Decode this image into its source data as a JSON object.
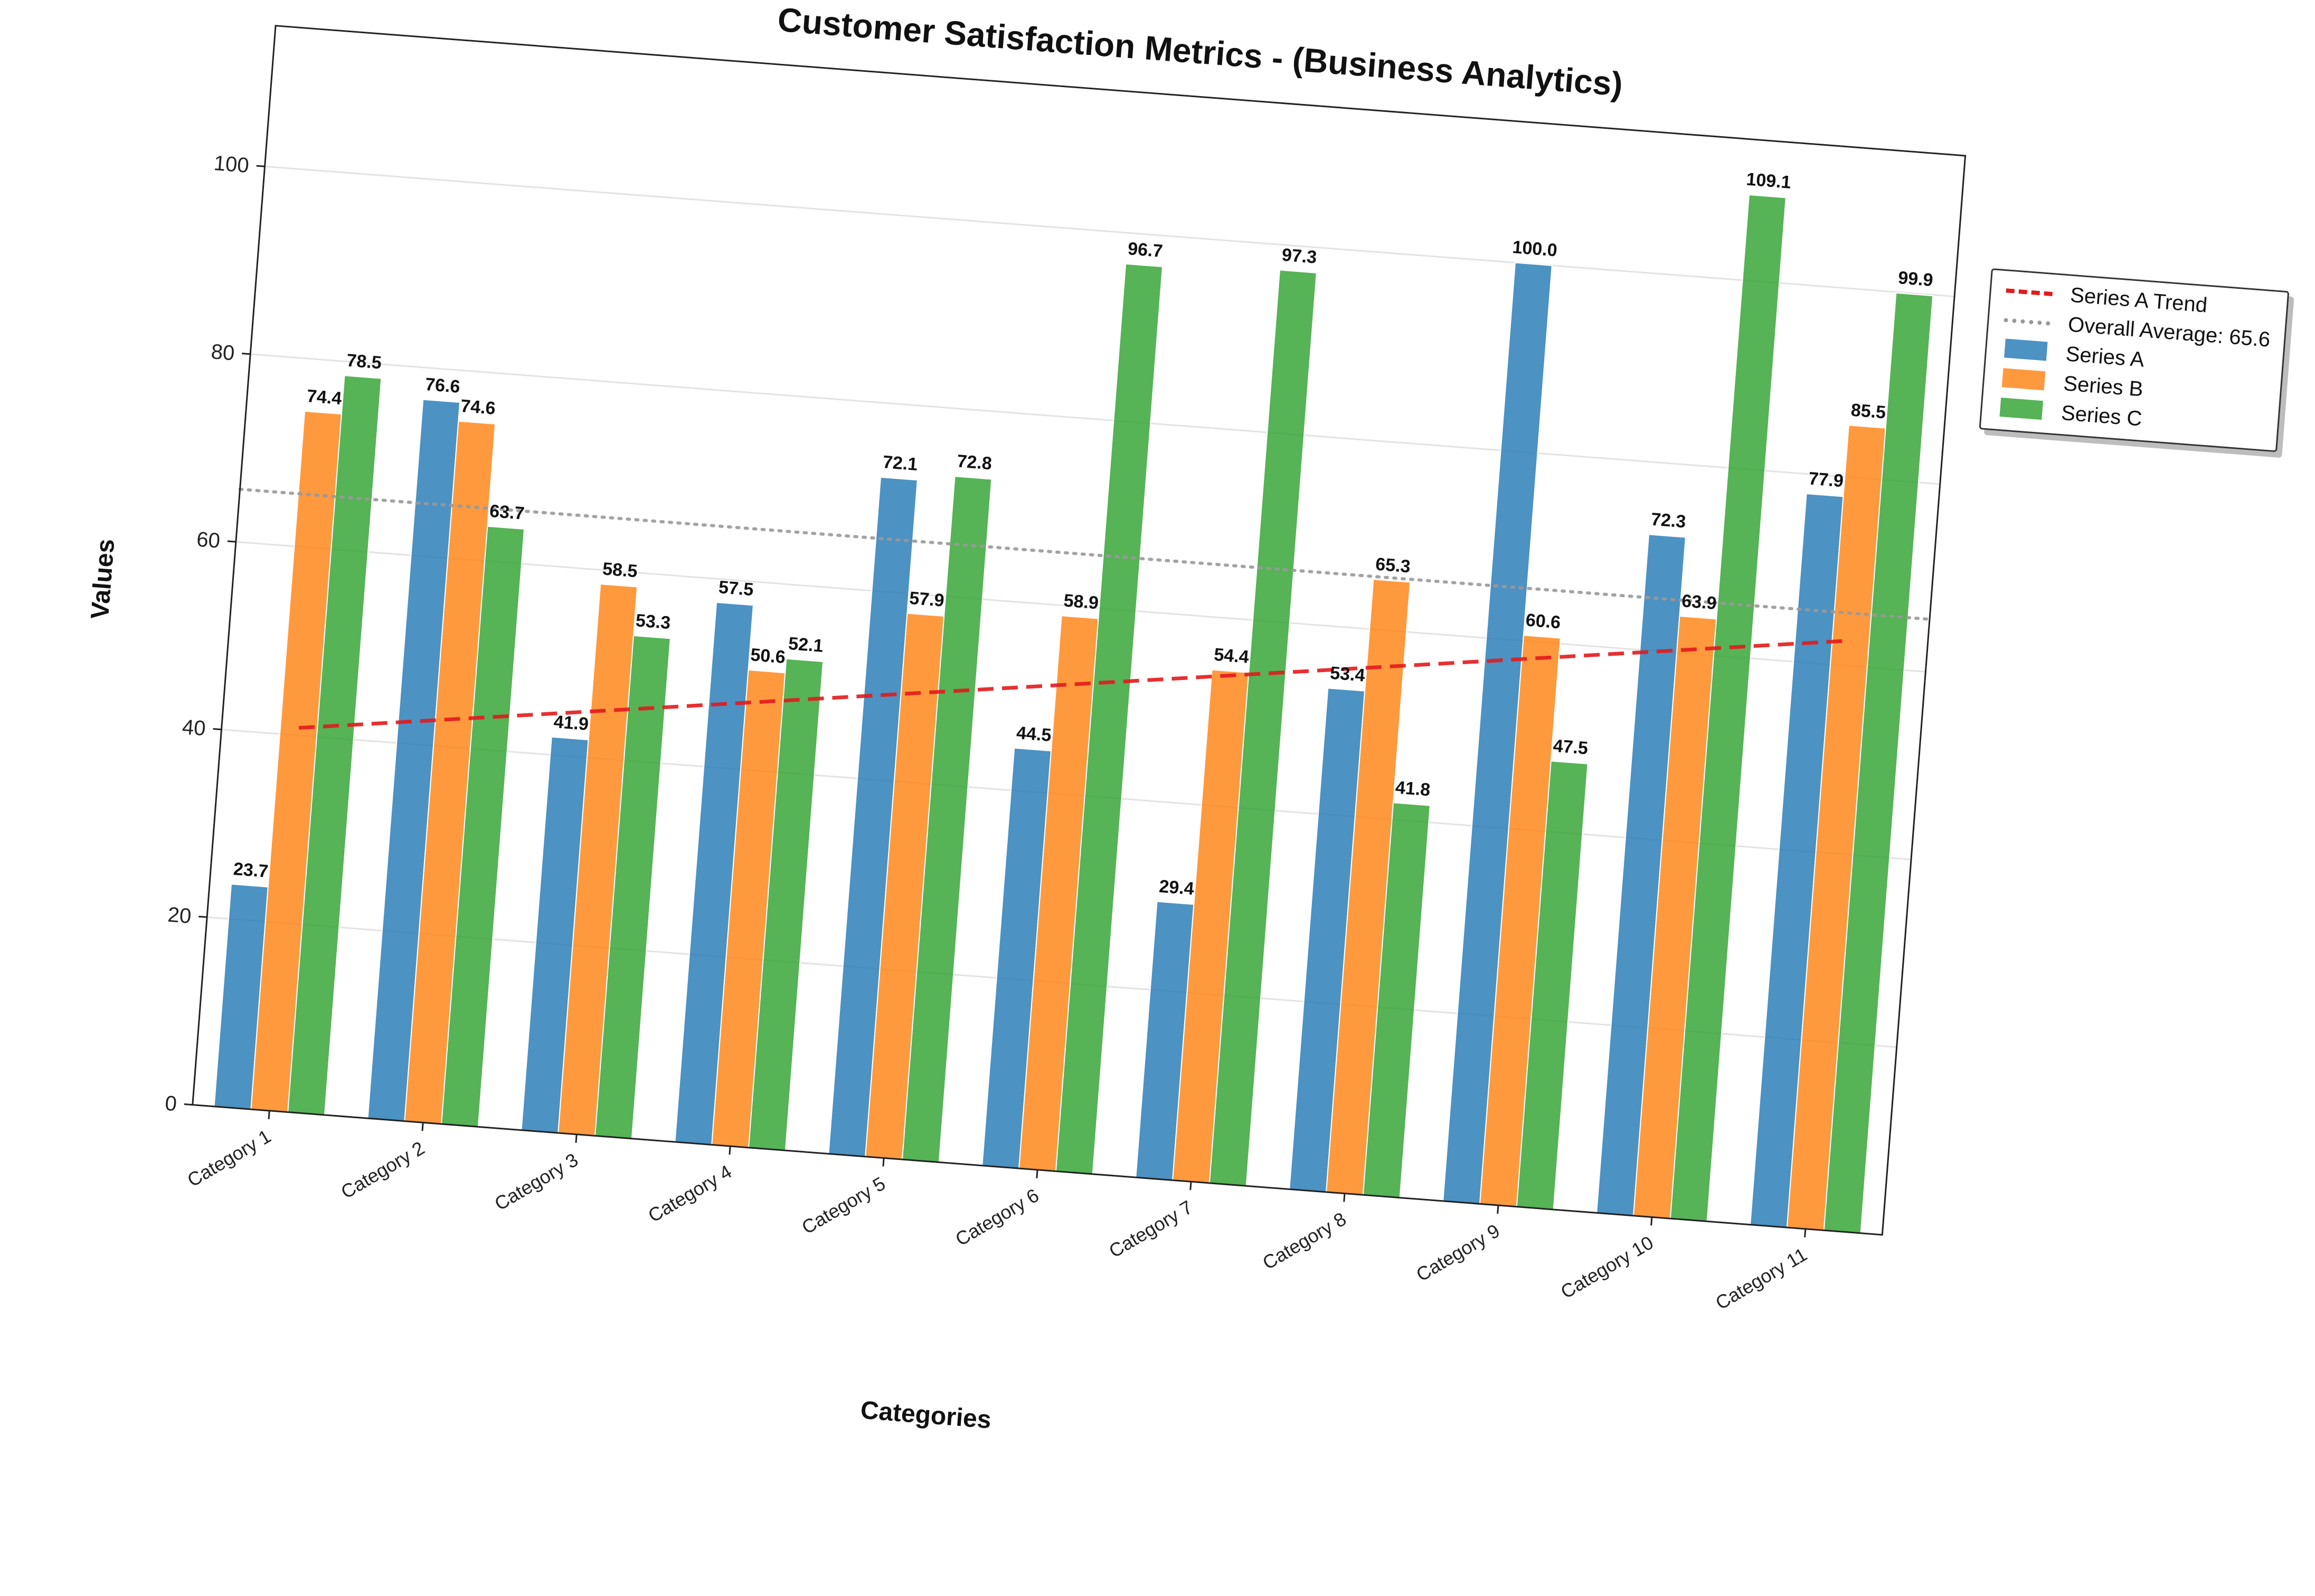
{
  "chart_data": {
    "type": "bar",
    "title": "Customer Satisfaction Metrics - (Business Analytics)",
    "xlabel": "Categories",
    "ylabel": "Values",
    "categories": [
      "Category 1",
      "Category 2",
      "Category 3",
      "Category 4",
      "Category 5",
      "Category 6",
      "Category 7",
      "Category 8",
      "Category 9",
      "Category 10",
      "Category 11"
    ],
    "series": [
      {
        "name": "Series A",
        "color": "#1f77b4",
        "values": [
          23.7,
          76.6,
          41.9,
          57.5,
          72.1,
          44.5,
          29.4,
          53.4,
          100.0,
          72.3,
          77.9
        ]
      },
      {
        "name": "Series B",
        "color": "#ff7f0e",
        "values": [
          74.4,
          74.6,
          58.5,
          50.6,
          57.9,
          58.9,
          54.4,
          65.3,
          60.6,
          63.9,
          85.5
        ]
      },
      {
        "name": "Series C",
        "color": "#2ca02c",
        "values": [
          78.5,
          63.7,
          53.3,
          52.1,
          72.8,
          96.7,
          97.3,
          41.8,
          47.5,
          109.1,
          99.9
        ]
      }
    ],
    "trend": {
      "name": "Series A Trend",
      "color": "#e31a1c",
      "style": "dashed",
      "start": 40.8,
      "end": 62.7
    },
    "average": {
      "name": "Overall Average: 65.6",
      "value": 65.6,
      "color": "#999999",
      "style": "dotted"
    },
    "ylim": [
      0,
      115
    ],
    "yticks": [
      0,
      20,
      40,
      60,
      80,
      100
    ],
    "grid": true,
    "legend": "right, outside plot",
    "rotation_deg": 4.4
  }
}
